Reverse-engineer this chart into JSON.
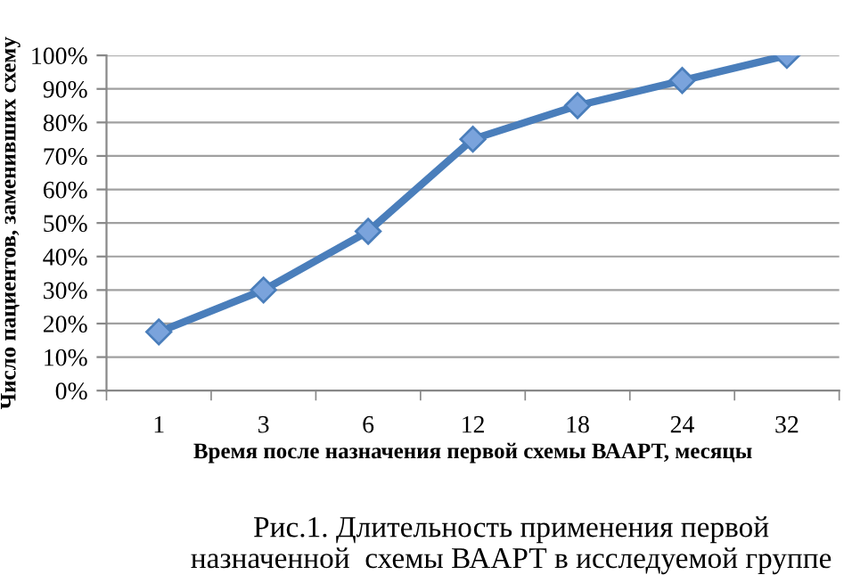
{
  "chart_data": {
    "type": "line",
    "xlabel": "Время после назначения первой схемы ВААРТ, месяцы",
    "ylabel": "Число пациентов, заменивших схему",
    "annotations": [
      "Рис.1. Длительность применения первой назначенной  схемы ВААРТ в исследуемой группе"
    ],
    "categories": [
      "1",
      "3",
      "6",
      "12",
      "18",
      "24",
      "32"
    ],
    "series": [
      {
        "color": "#4a7ebb",
        "values": [
          17.5,
          30,
          47.5,
          75,
          85,
          92.5,
          100
        ]
      }
    ],
    "ylim": [
      0,
      100
    ],
    "yticks": [
      {
        "value": 0,
        "label": "0%"
      },
      {
        "value": 10,
        "label": "10%"
      },
      {
        "value": 20,
        "label": "20%"
      },
      {
        "value": 30,
        "label": "30%"
      },
      {
        "value": 40,
        "label": "40%"
      },
      {
        "value": 50,
        "label": "50%"
      },
      {
        "value": 60,
        "label": "60%"
      },
      {
        "value": 70,
        "label": "70%"
      },
      {
        "value": 80,
        "label": "80%"
      },
      {
        "value": 90,
        "label": "90%"
      },
      {
        "value": 100,
        "label": "100%"
      }
    ],
    "grid": "y",
    "marker": "diamond",
    "line_style": "solid",
    "legend": false
  }
}
